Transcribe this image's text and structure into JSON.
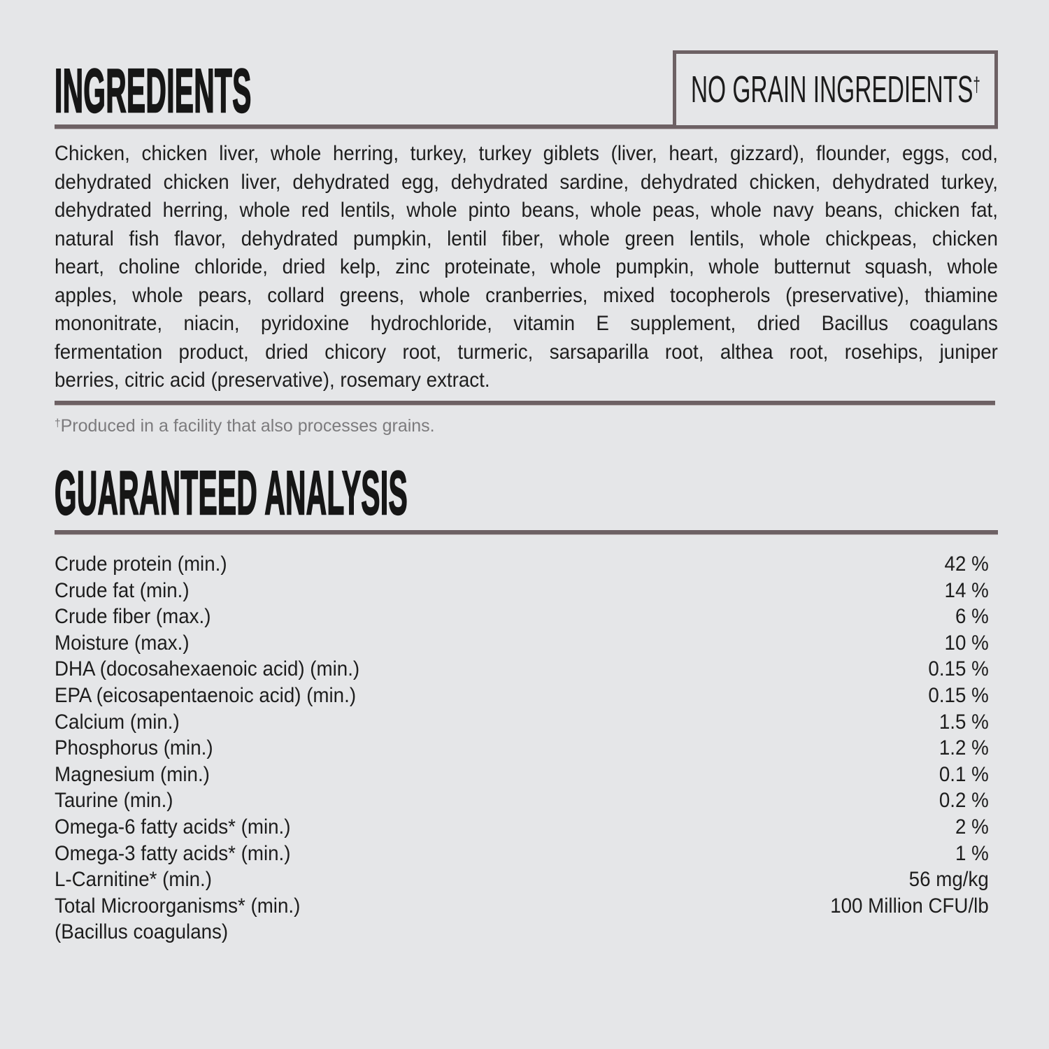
{
  "colors": {
    "background": "#e5e6e8",
    "text": "#1d1d1d",
    "rule": "#6d6164",
    "footnote_gray": "#7c7b7d"
  },
  "ingredients": {
    "title": "INGREDIENTS",
    "no_grain_box": {
      "label": "NO GRAIN INGREDIENTS",
      "dagger": "†"
    },
    "lines": [
      "Chicken, chicken liver, whole herring, turkey, turkey giblets (liver, heart, gizzard), flounder, eggs, cod,",
      "dehydrated chicken liver, dehydrated egg, dehydrated sardine, dehydrated chicken, dehydrated turkey,",
      "dehydrated herring, whole red lentils, whole pinto beans, whole peas, whole navy beans, chicken fat,",
      "natural fish flavor, dehydrated pumpkin, lentil fiber, whole green lentils, whole chickpeas, chicken",
      "heart, choline chloride, dried kelp, zinc proteinate, whole pumpkin, whole butternut squash, whole",
      "apples, whole pears, collard greens, whole cranberries, mixed tocopherols (preservative), thiamine",
      "mononitrate, niacin, pyridoxine hydrochloride, vitamin E supplement, dried Bacillus coagulans",
      "fermentation product, dried chicory root, turmeric, sarsaparilla root, althea root, rosehips, juniper",
      "berries, citric acid (preservative), rosemary extract."
    ],
    "footnote_dagger": "†",
    "footnote": "Produced in a facility that also processes grains."
  },
  "analysis": {
    "title": "GUARANTEED ANALYSIS",
    "rows": [
      {
        "label": "Crude protein (min.)",
        "value": "42 %"
      },
      {
        "label": "Crude fat (min.)",
        "value": "14 %"
      },
      {
        "label": "Crude fiber (max.)",
        "value": "6 %"
      },
      {
        "label": "Moisture (max.)",
        "value": "10 %"
      },
      {
        "label": "DHA (docosahexaenoic acid) (min.)",
        "value": "0.15 %"
      },
      {
        "label": "EPA (eicosapentaenoic acid) (min.)",
        "value": "0.15 %"
      },
      {
        "label": "Calcium (min.)",
        "value": "1.5 %"
      },
      {
        "label": "Phosphorus (min.)",
        "value": "1.2 %"
      },
      {
        "label": "Magnesium (min.)",
        "value": "0.1 %"
      },
      {
        "label": "Taurine (min.)",
        "value": "0.2 %"
      },
      {
        "label": "Omega-6 fatty acids* (min.)",
        "value": "2 %"
      },
      {
        "label": "Omega-3 fatty acids* (min.)",
        "value": "1 %"
      },
      {
        "label": "L-Carnitine* (min.)",
        "value": "56 mg/kg"
      },
      {
        "label": "Total Microorganisms* (min.)",
        "value": "100 Million CFU/lb"
      },
      {
        "label": "(Bacillus coagulans)",
        "value": ""
      }
    ]
  }
}
